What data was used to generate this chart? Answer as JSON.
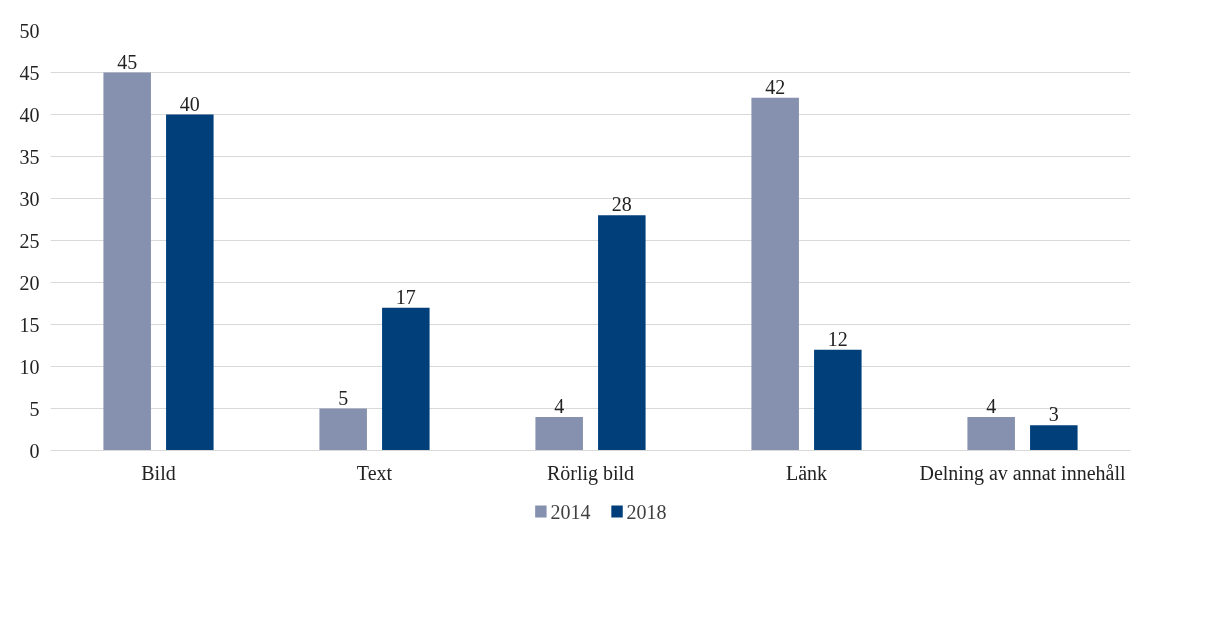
{
  "chart_data": {
    "type": "bar",
    "categories": [
      "Bild",
      "Text",
      "Rörlig bild",
      "Länk",
      "Delning av annat innehåll"
    ],
    "series": [
      {
        "name": "2014",
        "color": "#8591ae",
        "values": [
          45,
          5,
          4,
          42,
          4
        ]
      },
      {
        "name": "2018",
        "color": "#003f7a",
        "values": [
          40,
          17,
          28,
          12,
          3
        ]
      }
    ],
    "ylim": [
      0,
      50
    ],
    "yticks": [
      0,
      5,
      10,
      15,
      20,
      25,
      30,
      35,
      40,
      45,
      50
    ],
    "grid": "y",
    "legend": "bottom",
    "data_labels": true
  }
}
